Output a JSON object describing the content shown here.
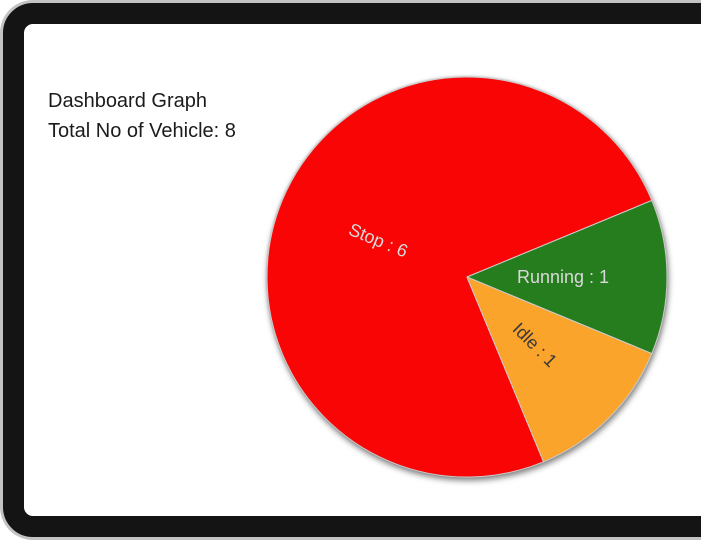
{
  "header": {
    "title": "Dashboard Graph",
    "subtitle": "Total No of Vehicle: 8"
  },
  "chart_data": {
    "type": "pie",
    "title": "Dashboard Graph",
    "subtitle": "Total No of Vehicle: 8",
    "total": 8,
    "labels": [
      "Stop",
      "Running",
      "Idle"
    ],
    "values": [
      6,
      1,
      1
    ],
    "slices": [
      {
        "label": "Stop",
        "value": 6,
        "display": "Stop : 6",
        "color": "#F90505",
        "label_color": "#D9D9D9"
      },
      {
        "label": "Running",
        "value": 1,
        "display": "Running : 1",
        "color": "#267D1E",
        "label_color": "#D9D9D9"
      },
      {
        "label": "Idle",
        "value": 1,
        "display": "Idle : 1",
        "color": "#FAA42B",
        "label_color": "#3A3A3A"
      }
    ],
    "start_angle_deg": -67.5,
    "direction": "clockwise",
    "labels_position": "inside-rotated",
    "label_radius_ratio": 0.48,
    "radius_px": 200,
    "slice_border_color": "#CCCCCC",
    "legend": "none",
    "shadow": true
  }
}
